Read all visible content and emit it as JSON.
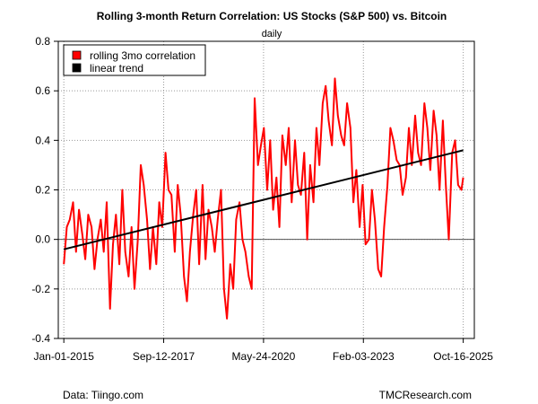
{
  "chart_data": {
    "type": "line",
    "title": "Rolling 3-month Return Correlation: US Stocks (S&P 500) vs. Bitcoin",
    "subtitle": "daily",
    "xlabel": "",
    "ylabel": "",
    "x_tick_labels": [
      "Jan-01-2015",
      "Sep-12-2017",
      "May-24-2020",
      "Feb-03-2023",
      "Oct-16-2025"
    ],
    "x_tick_years": [
      2015.0,
      2017.7,
      2020.4,
      2023.1,
      2025.8
    ],
    "xlim": [
      2014.85,
      2026.1
    ],
    "y_ticks": [
      -0.4,
      -0.2,
      0.0,
      0.2,
      0.4,
      0.6,
      0.8
    ],
    "y_tick_labels": [
      "-0.4",
      "-0.2",
      "0.0",
      "0.2",
      "0.4",
      "0.6",
      "0.8"
    ],
    "ylim": [
      -0.4,
      0.8
    ],
    "grid": true,
    "legend_position": "top-left",
    "series": [
      {
        "name": "rolling 3mo correlation",
        "color": "#ff0000",
        "x": [
          2015.0,
          2015.08,
          2015.16,
          2015.25,
          2015.33,
          2015.41,
          2015.5,
          2015.58,
          2015.66,
          2015.75,
          2015.83,
          2015.91,
          2016.0,
          2016.08,
          2016.16,
          2016.25,
          2016.33,
          2016.41,
          2016.5,
          2016.58,
          2016.66,
          2016.75,
          2016.83,
          2016.91,
          2017.0,
          2017.08,
          2017.16,
          2017.25,
          2017.33,
          2017.41,
          2017.5,
          2017.58,
          2017.66,
          2017.75,
          2017.83,
          2017.91,
          2018.0,
          2018.08,
          2018.16,
          2018.25,
          2018.33,
          2018.41,
          2018.5,
          2018.58,
          2018.66,
          2018.75,
          2018.83,
          2018.91,
          2019.0,
          2019.08,
          2019.16,
          2019.25,
          2019.33,
          2019.41,
          2019.5,
          2019.58,
          2019.66,
          2019.75,
          2019.83,
          2019.91,
          2020.0,
          2020.08,
          2020.16,
          2020.25,
          2020.33,
          2020.41,
          2020.5,
          2020.58,
          2020.66,
          2020.75,
          2020.83,
          2020.91,
          2021.0,
          2021.08,
          2021.16,
          2021.25,
          2021.33,
          2021.41,
          2021.5,
          2021.58,
          2021.66,
          2021.75,
          2021.83,
          2021.91,
          2022.0,
          2022.08,
          2022.16,
          2022.25,
          2022.33,
          2022.41,
          2022.5,
          2022.58,
          2022.66,
          2022.75,
          2022.83,
          2022.91,
          2023.0,
          2023.08,
          2023.16,
          2023.25,
          2023.33,
          2023.41,
          2023.5,
          2023.58,
          2023.66,
          2023.75,
          2023.83,
          2023.91,
          2024.0,
          2024.08,
          2024.16,
          2024.25,
          2024.33,
          2024.41,
          2024.5,
          2024.58,
          2024.66,
          2024.75,
          2024.83,
          2024.91,
          2025.0,
          2025.08,
          2025.16,
          2025.25,
          2025.33,
          2025.41,
          2025.5,
          2025.58,
          2025.66,
          2025.75,
          2025.8
        ],
        "values": [
          -0.1,
          0.05,
          0.08,
          0.15,
          -0.05,
          0.12,
          0.02,
          -0.08,
          0.1,
          0.05,
          -0.12,
          0.0,
          0.08,
          -0.05,
          0.15,
          -0.28,
          -0.02,
          0.1,
          -0.1,
          0.2,
          -0.05,
          -0.15,
          0.05,
          -0.2,
          0.0,
          0.3,
          0.22,
          0.08,
          -0.12,
          0.05,
          -0.1,
          0.15,
          0.05,
          0.35,
          0.2,
          0.18,
          -0.05,
          0.22,
          0.1,
          -0.15,
          -0.25,
          -0.05,
          0.1,
          0.2,
          -0.1,
          0.22,
          -0.08,
          0.12,
          0.05,
          -0.05,
          0.08,
          0.2,
          -0.2,
          -0.32,
          -0.1,
          -0.2,
          0.08,
          0.15,
          0.0,
          -0.05,
          -0.15,
          -0.2,
          0.57,
          0.3,
          0.38,
          0.45,
          0.2,
          0.4,
          0.12,
          0.25,
          0.05,
          0.42,
          0.3,
          0.45,
          0.15,
          0.4,
          0.22,
          0.18,
          0.35,
          0.0,
          0.3,
          0.15,
          0.45,
          0.3,
          0.55,
          0.62,
          0.48,
          0.38,
          0.65,
          0.5,
          0.42,
          0.38,
          0.55,
          0.45,
          0.15,
          0.28,
          0.05,
          0.22,
          -0.02,
          0.0,
          0.2,
          0.08,
          -0.12,
          -0.15,
          0.05,
          0.22,
          0.45,
          0.4,
          0.32,
          0.3,
          0.18,
          0.25,
          0.45,
          0.3,
          0.5,
          0.35,
          0.3,
          0.55,
          0.45,
          0.28,
          0.52,
          0.42,
          0.2,
          0.48,
          0.22,
          0.0,
          0.35,
          0.4,
          0.22,
          0.2,
          0.25
        ]
      },
      {
        "name": "linear trend",
        "color": "#000000",
        "x": [
          2015.0,
          2025.8
        ],
        "values": [
          -0.04,
          0.36
        ]
      }
    ]
  },
  "footer": {
    "left": "Data: Tiingo.com",
    "right": "TMCResearch.com"
  }
}
